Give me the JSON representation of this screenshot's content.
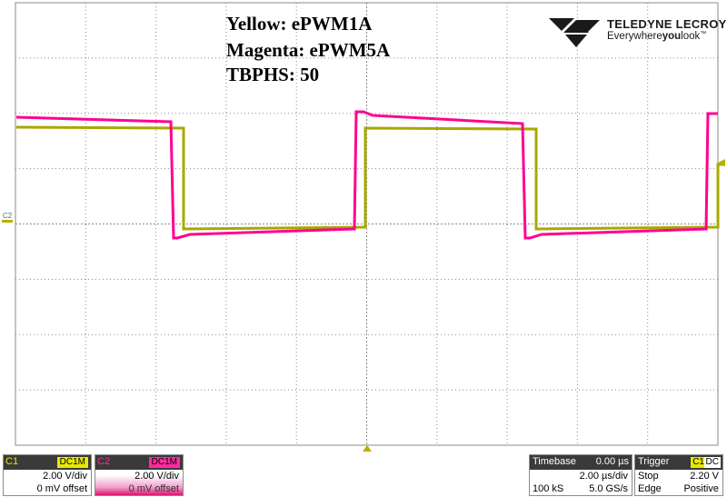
{
  "annotations": {
    "line1": "Yellow: ePWM1A",
    "line2": "Magenta: ePWM5A",
    "line3": "TBPHS: 50"
  },
  "logo": {
    "brand": "TELEDYNE LECROY",
    "tagline_pre": "Everywhere",
    "tagline_bold": "you",
    "tagline_post": "look",
    "tm": "™"
  },
  "markers": {
    "c2_label": "C2"
  },
  "channels": [
    {
      "name": "C1",
      "coupling": "DC1M",
      "scale": "2.00 V/div",
      "offset": "0 mV offset",
      "color": "#c8c800"
    },
    {
      "name": "C2",
      "coupling": "DC1M",
      "scale": "2.00 V/div",
      "offset": "0 mV offset",
      "color": "#e6148c"
    }
  ],
  "timebase": {
    "title": "Timebase",
    "delay": "0.00 µs",
    "scale": "2.00 µs/div",
    "samples": "100 kS",
    "rate": "5.0 GS/s"
  },
  "trigger": {
    "title": "Trigger",
    "source": "C1",
    "coupling": "DC",
    "mode": "Stop",
    "level": "2.20 V",
    "type": "Edge",
    "slope": "Positive"
  },
  "colors": {
    "grid": "#8a8a8a",
    "yellow_trace": "#a8a800",
    "magenta_trace": "#ff0090",
    "marker": "#b8b000"
  }
}
